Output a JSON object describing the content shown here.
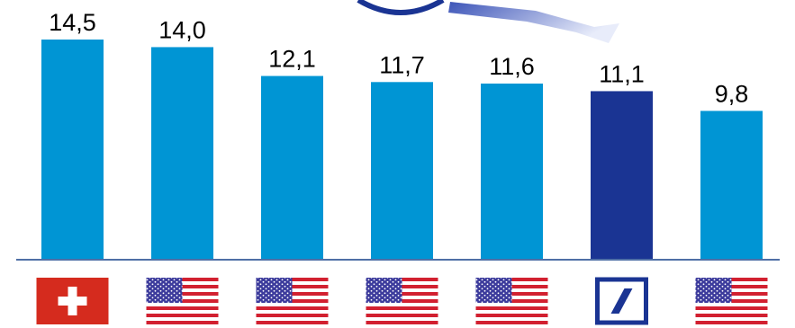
{
  "chart_data": {
    "type": "bar",
    "categories": [
      "swiss-flag",
      "us-flag",
      "us-flag",
      "us-flag",
      "us-flag",
      "deutsche-bank-logo",
      "us-flag"
    ],
    "values": [
      14.5,
      14.0,
      12.1,
      11.7,
      11.6,
      11.1,
      9.8
    ],
    "value_labels": [
      "14,5",
      "14,0",
      "12,1",
      "11,7",
      "11,6",
      "11,1",
      "9,8"
    ],
    "highlight_index": 5,
    "ylim": [
      0,
      14.5
    ],
    "grid": false,
    "legend": "none",
    "colors": {
      "bar": "#0095D4",
      "highlight": "#1A3493",
      "axis": "#4F6FA6",
      "swiss_red": "#D52B1E",
      "us_red": "#D22030",
      "us_blue": "#3C3B9C",
      "db_blue": "#1A3493"
    }
  }
}
